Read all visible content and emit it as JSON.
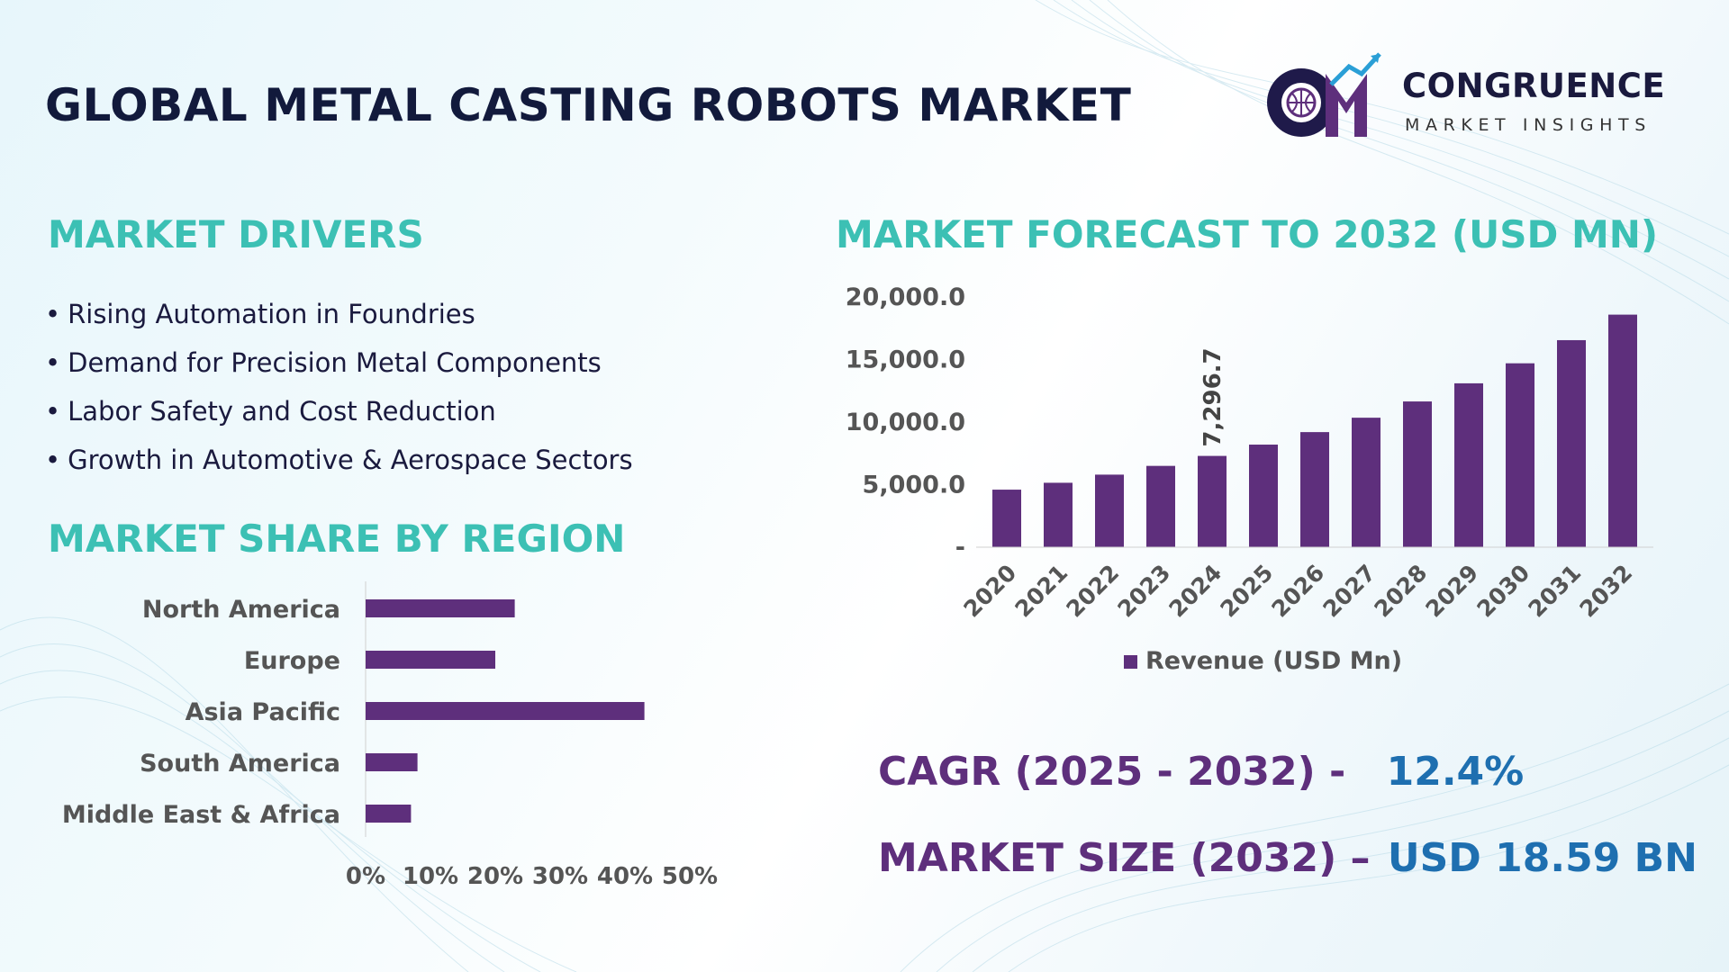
{
  "title": "GLOBAL METAL CASTING ROBOTS MARKET",
  "logo": {
    "mark": "CM",
    "name": "CONGRUENCE",
    "tagline": "MARKET INSIGHTS"
  },
  "colors": {
    "heading": "#3cc0b4",
    "bar": "#5e2f7c",
    "title": "#121a3c",
    "stat_value": "#1e6fb0"
  },
  "drivers": {
    "heading": "MARKET DRIVERS",
    "bullet": "•",
    "items": [
      "Rising Automation in Foundries",
      "Demand for Precision Metal Components",
      "Labor Safety and Cost Reduction",
      "Growth in Automotive & Aerospace Sectors"
    ]
  },
  "region_heading": "MARKET SHARE BY REGION",
  "forecast_heading": "MARKET FORECAST TO 2032 (USD MN)",
  "stats": {
    "cagr_label": "CAGR (2025 - 2032) -",
    "cagr_value": "12.4%",
    "size_label": "MARKET SIZE (2032) –",
    "size_value": "USD 18.59 BN"
  },
  "chart_data": [
    {
      "type": "bar",
      "orientation": "horizontal",
      "categories": [
        "North America",
        "Europe",
        "Asia Pacific",
        "South America",
        "Middle East & Africa"
      ],
      "values": [
        23,
        20,
        43,
        8,
        7
      ],
      "xlim": [
        0,
        50
      ],
      "xticks": [
        "0%",
        "10%",
        "20%",
        "30%",
        "40%",
        "50%"
      ],
      "grid": false,
      "legend": false
    },
    {
      "type": "bar",
      "categories": [
        "2020",
        "2021",
        "2022",
        "2023",
        "2024",
        "2025",
        "2026",
        "2027",
        "2028",
        "2029",
        "2030",
        "2031",
        "2032"
      ],
      "series": [
        {
          "name": "Revenue (USD Mn)",
          "values": [
            4600,
            5150,
            5800,
            6500,
            7296.7,
            8200,
            9200,
            10350,
            11650,
            13100,
            14700,
            16550,
            18590
          ]
        }
      ],
      "data_labels": [
        {
          "category": "2024",
          "text": "7,296.7"
        }
      ],
      "ylim": [
        0,
        20000
      ],
      "yticks": [
        "-",
        "5,000.0",
        "10,000.0",
        "15,000.0",
        "20,000.0"
      ],
      "grid": false,
      "legend": "bottom"
    }
  ]
}
